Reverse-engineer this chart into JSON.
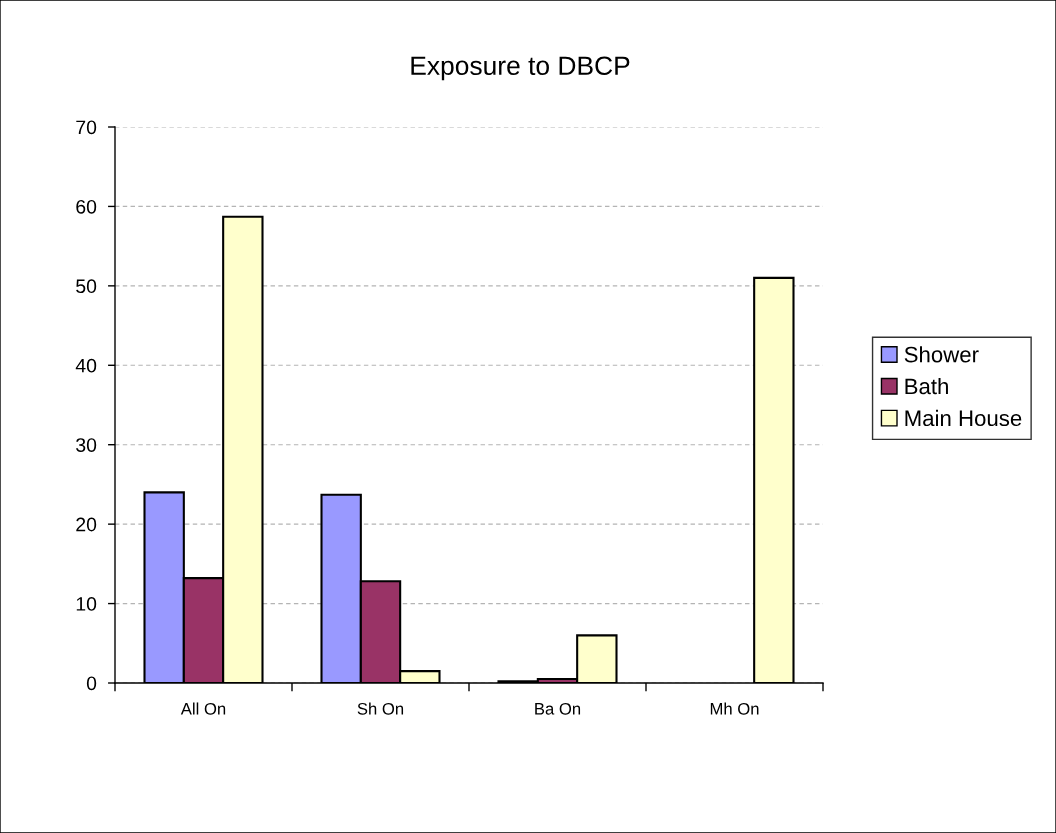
{
  "chart_data": {
    "type": "bar",
    "title": "Exposure to DBCP",
    "categories": [
      "All On",
      "Sh On",
      "Ba On",
      "Mh On"
    ],
    "series": [
      {
        "name": "Shower",
        "color": "#9999ff",
        "values": [
          24.0,
          23.7,
          0.2,
          null
        ]
      },
      {
        "name": "Bath",
        "color": "#993366",
        "values": [
          13.2,
          12.8,
          0.5,
          null
        ]
      },
      {
        "name": "Main House",
        "color": "#ffffcc",
        "values": [
          58.7,
          1.5,
          6.0,
          51.0
        ]
      }
    ],
    "ylim": [
      0,
      70
    ],
    "yticks": [
      0,
      10,
      20,
      30,
      40,
      50,
      60,
      70
    ],
    "grid": "y",
    "legend": "right"
  }
}
